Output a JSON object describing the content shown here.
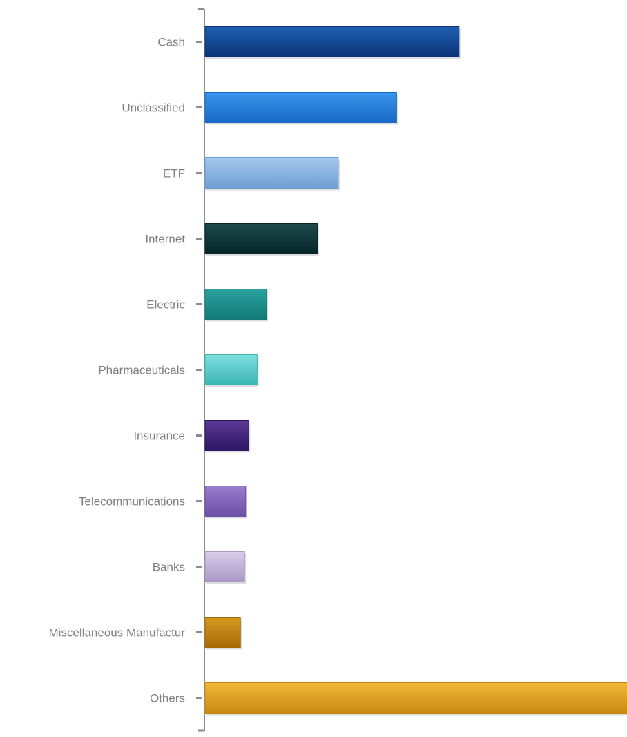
{
  "chart_data": {
    "type": "bar",
    "orientation": "horizontal",
    "title": "",
    "xlabel": "",
    "ylabel": "",
    "categories": [
      "Cash",
      "Unclassified",
      "ETF",
      "Internet",
      "Electric",
      "Pharmaceuticals",
      "Insurance",
      "Telecommunications",
      "Banks",
      "Miscellaneous Manufactur",
      "Others"
    ],
    "values": [
      12.2,
      9.2,
      6.4,
      5.4,
      2.95,
      2.5,
      2.1,
      1.95,
      1.9,
      1.7,
      20.3
    ],
    "xlim": [
      0,
      20.3
    ],
    "colors": [
      [
        "#1f5fb0",
        "#0b3378"
      ],
      [
        "#3a95ec",
        "#1769c6"
      ],
      [
        "#a4c8ef",
        "#6f9ed4"
      ],
      [
        "#1d4a4c",
        "#06262a"
      ],
      [
        "#2aa39f",
        "#137a76"
      ],
      [
        "#7fe0df",
        "#3ab5b3"
      ],
      [
        "#5b3a94",
        "#2e1663"
      ],
      [
        "#9a7dcc",
        "#6c4fa6"
      ],
      [
        "#d9cdea",
        "#a898c4"
      ],
      [
        "#d69a22",
        "#a66a06"
      ],
      [
        "#f2b83a",
        "#c9880e"
      ]
    ],
    "value_axis_visible": false,
    "grid": false,
    "legend": "none"
  }
}
